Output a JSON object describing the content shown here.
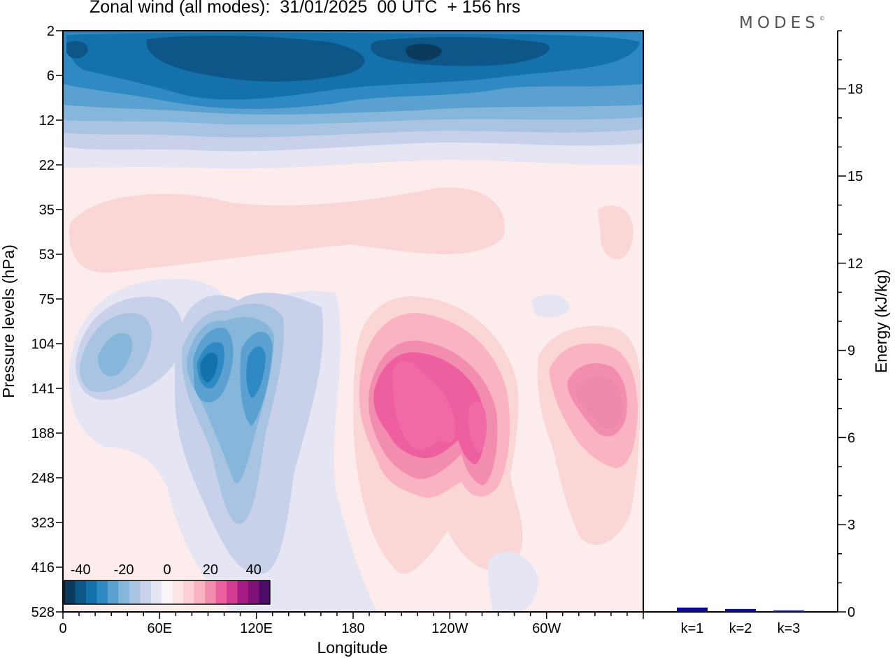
{
  "header": {
    "title": "Zonal wind (all modes):  31/01/2025  00 UTC  + 156 hrs",
    "brand": "MODES",
    "brand_mark": "©"
  },
  "chart_data": [
    {
      "type": "heatmap",
      "xlabel": "Longitude",
      "ylabel": "Pressure levels (hPa)",
      "x_ticks": [
        "0",
        "60E",
        "120E",
        "180",
        "120W",
        "60W"
      ],
      "x_tick_degrees": [
        0,
        60,
        120,
        180,
        240,
        300
      ],
      "xlim": [
        0,
        360
      ],
      "y_ticks": [
        "2",
        "6",
        "12",
        "22",
        "35",
        "53",
        "75",
        "104",
        "141",
        "188",
        "248",
        "323",
        "416",
        "528"
      ],
      "colorbar": {
        "tick_labels": [
          "-40",
          "-20",
          "0",
          "20",
          "40"
        ],
        "levels": [
          -45,
          -40,
          -35,
          -30,
          -25,
          -20,
          -15,
          -10,
          -5,
          0,
          5,
          10,
          15,
          20,
          25,
          30,
          35,
          40,
          45
        ],
        "colors": [
          "#0b3a5d",
          "#0d5687",
          "#1471ac",
          "#2f89c2",
          "#5aa0d0",
          "#86b7da",
          "#a9c3e2",
          "#c9d1ea",
          "#e6e5f3",
          "#fdf6f8",
          "#fde4e5",
          "#fbcfd3",
          "#f9b3c3",
          "#f38db0",
          "#ee5fa0",
          "#d23c93",
          "#a71d83",
          "#7e1276",
          "#4d0d66"
        ]
      },
      "regions": [
        {
          "name": "strat-easterlies-1",
          "value": -10,
          "lon": [
            0,
            360
          ],
          "p": [
            2,
            20
          ]
        },
        {
          "name": "strat-easterlies-2",
          "value": -20,
          "lon": [
            0,
            360
          ],
          "p": [
            2,
            13
          ]
        },
        {
          "name": "strat-easterlies-3",
          "value": -30,
          "lon": [
            0,
            360
          ],
          "p": [
            2,
            10
          ]
        },
        {
          "name": "strat-easterlies-4",
          "value": -40,
          "lon": [
            50,
            150
          ],
          "p": [
            3,
            6
          ]
        },
        {
          "name": "westerly-jet-pacific",
          "value": 35,
          "lon": [
            205,
            250
          ],
          "p": [
            110,
            230
          ]
        },
        {
          "name": "westerly-jet-americas",
          "value": 25,
          "lon": [
            315,
            355
          ],
          "p": [
            115,
            200
          ]
        },
        {
          "name": "easterly-core-asia",
          "value": -35,
          "lon": [
            80,
            100
          ],
          "p": [
            110,
            160
          ]
        },
        {
          "name": "easterly-core-asia-2",
          "value": -30,
          "lon": [
            110,
            125
          ],
          "p": [
            115,
            200
          ]
        }
      ]
    },
    {
      "type": "bar",
      "categories": [
        "k=1",
        "k=2",
        "k=3"
      ],
      "values": [
        0.15,
        0.1,
        0.05
      ],
      "ylabel": "Energy (kJ/kg)",
      "y_ticks": [
        0,
        3,
        6,
        9,
        12,
        15,
        18
      ],
      "ylim": [
        0,
        20
      ],
      "bar_color": "#0b0b8a"
    }
  ]
}
